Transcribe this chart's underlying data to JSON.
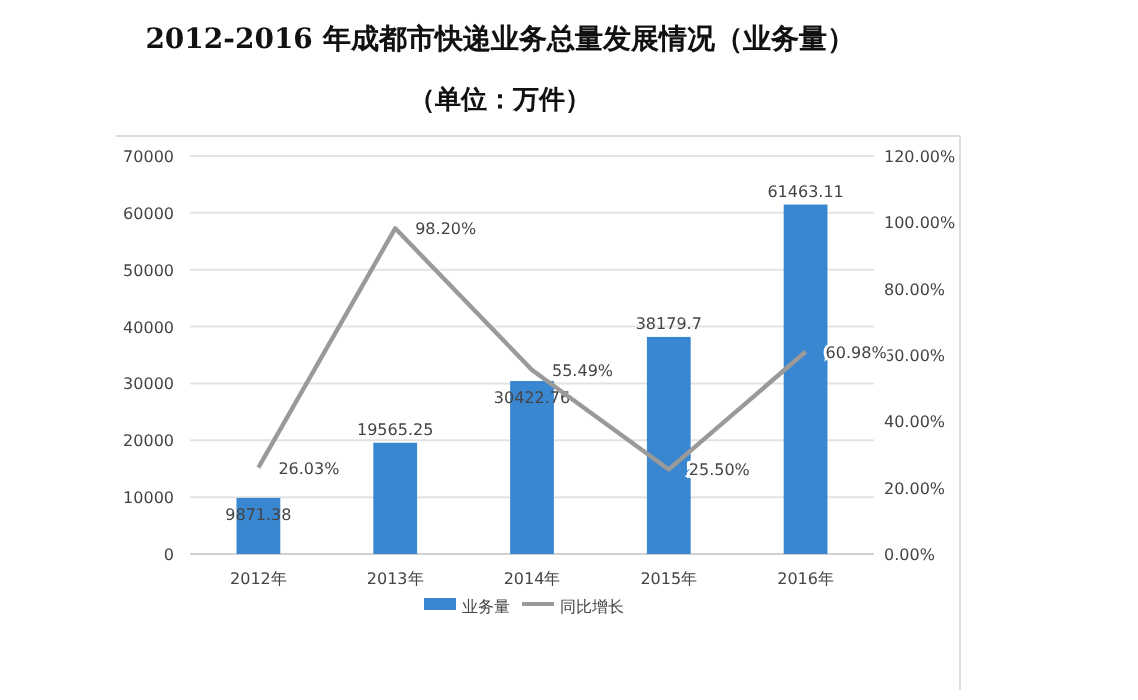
{
  "chart_data": {
    "type": "bar",
    "title": "2012-2016 年成都市快递业务总量发展情况（业务量）",
    "subtitle": "（单位：万件）",
    "categories": [
      "2012年",
      "2013年",
      "2014年",
      "2015年",
      "2016年"
    ],
    "series": [
      {
        "name": "业务量",
        "color": "#3a87d1",
        "values": [
          9871.38,
          19565.25,
          30422.76,
          38179.7,
          61463.11
        ],
        "value_labels": [
          "9871.38",
          "19565.25",
          "30422.76",
          "38179.7",
          "61463.11"
        ]
      },
      {
        "name": "同比增长",
        "type": "line",
        "axis": "y2",
        "color": "#9a9a9a",
        "values": [
          26.03,
          98.2,
          55.49,
          25.5,
          60.98
        ],
        "value_labels": [
          "26.03%",
          "98.20%",
          "55.49%",
          "25.50%",
          "60.98%"
        ]
      }
    ],
    "ylim": [
      0,
      70000
    ],
    "yticks": [
      0,
      10000,
      20000,
      30000,
      40000,
      50000,
      60000,
      70000
    ],
    "y2lim": [
      0,
      120
    ],
    "y2ticks": [
      {
        "value": 0,
        "label": "0.00%"
      },
      {
        "value": 20,
        "label": "20.00%"
      },
      {
        "value": 40,
        "label": "40.00%"
      },
      {
        "value": 60,
        "label": "60.00%"
      },
      {
        "value": 80,
        "label": "80.00%"
      },
      {
        "value": 100,
        "label": "100.00%"
      },
      {
        "value": 120,
        "label": "120.00%"
      }
    ],
    "grid": "y",
    "legend": "bottom"
  }
}
